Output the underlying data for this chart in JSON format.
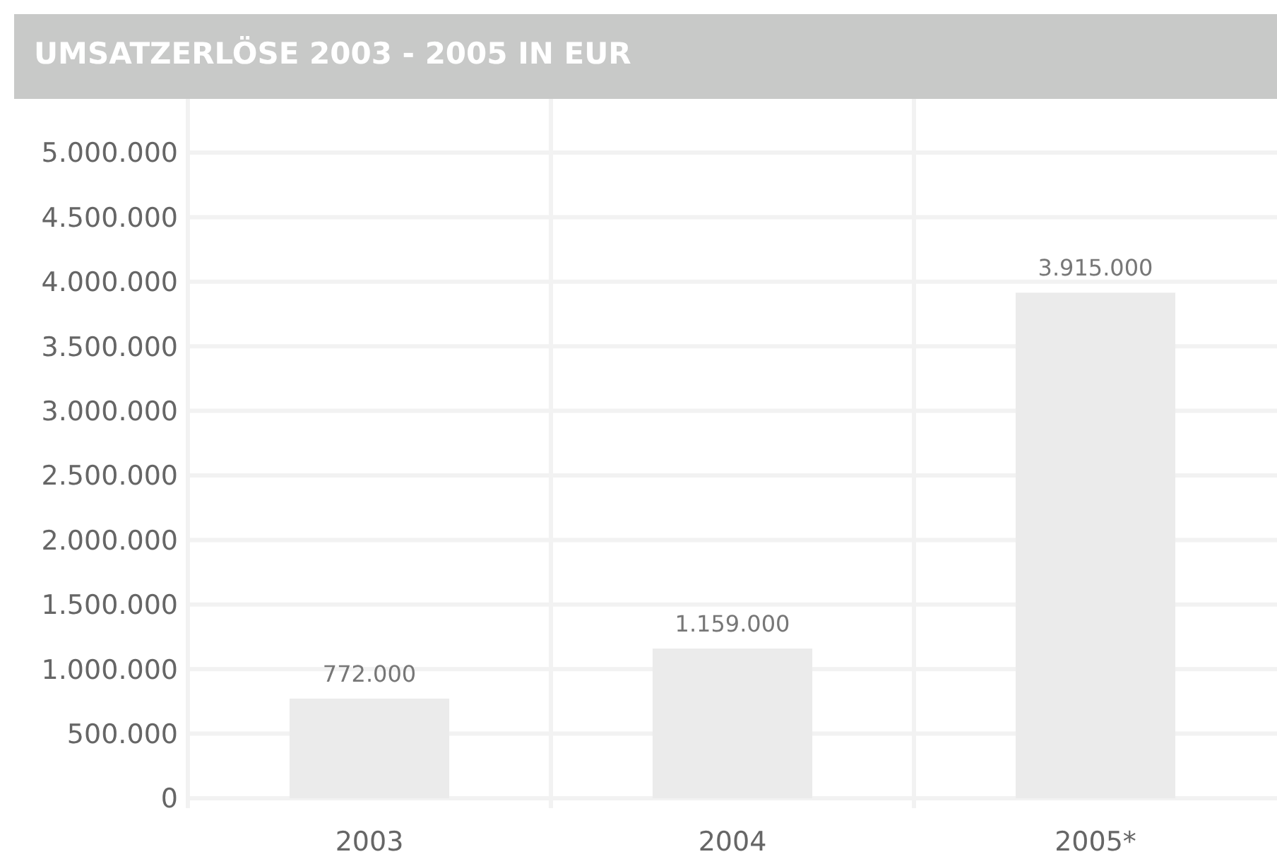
{
  "chart_data": {
    "type": "bar",
    "title": "UMSATZERLÖSE 2003 - 2005 IN EUR",
    "categories": [
      "2003",
      "2004",
      "2005*"
    ],
    "values": [
      772000,
      1159000,
      3915000
    ],
    "value_labels": [
      "772.000",
      "1.159.000",
      "3.915.000"
    ],
    "color": "#ebebeb",
    "ylim": [
      0,
      5000000
    ],
    "yticks": [
      0,
      {
        "value": 500000,
        "label": "500.000"
      },
      {
        "value": 1000000,
        "label": "1.000.000"
      },
      {
        "value": 1500000,
        "label": "1.500.000"
      },
      {
        "value": 2000000,
        "label": "2.000.000"
      },
      {
        "value": 2500000,
        "label": "2.500.000"
      },
      {
        "value": 3000000,
        "label": "3.000.000"
      },
      {
        "value": 3500000,
        "label": "3.500.000"
      },
      {
        "value": 4000000,
        "label": "4.000.000"
      },
      {
        "value": 4500000,
        "label": "4.500.000"
      },
      {
        "value": 5000000,
        "label": "5.000.000"
      }
    ],
    "grid": true
  }
}
